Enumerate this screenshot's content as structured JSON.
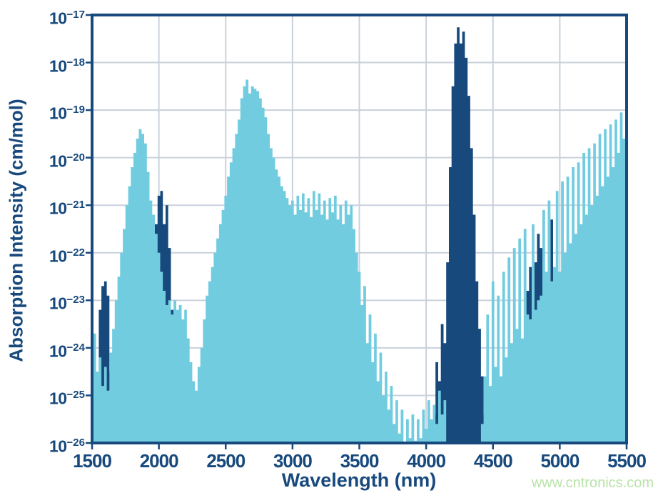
{
  "watermark": "www.cntronics.com",
  "chart_data": {
    "type": "area",
    "title": "",
    "xlabel": "Wavelength (nm)",
    "ylabel": "Absorption Intensity (cm/mol)",
    "x_axis": {
      "min": 1500,
      "max": 5500,
      "tick_step": 500,
      "ticks": [
        1500,
        2000,
        2500,
        3000,
        3500,
        4000,
        4500,
        5000,
        5500
      ]
    },
    "y_axis": {
      "scale": "log10",
      "top_exponent": -17,
      "bottom_exponent": -26,
      "tick_exponents": [
        -17,
        -18,
        -19,
        -20,
        -21,
        -22,
        -23,
        -24,
        -25,
        -26
      ],
      "tick_label_base": "10"
    },
    "grid": true,
    "legend": "none",
    "colors": {
      "light_blue_series": "#72cce0",
      "dark_blue_series": "#17497c",
      "grid": "#c9d1dc",
      "frame": "#17497d",
      "labels": "#17497d",
      "watermark": "#b9e3aa",
      "background": "#ffffff"
    },
    "sampling": {
      "x_start": 1500,
      "x_step": 20,
      "x_end": 5500,
      "points": 201,
      "value_meaning": "log10 of absorption intensity (cm/mol); -26 = at/below axis floor"
    },
    "series": [
      {
        "name": "dark-blue-absorption-bands",
        "color_key": "dark_blue_series",
        "z": 0,
        "log10_values": [
          -26,
          -26,
          -25.2,
          -23.2,
          -22.7,
          -22.6,
          -22.9,
          -24.5,
          -25.4,
          -26,
          -26,
          -26,
          -26,
          -26,
          -26,
          -26,
          -26,
          -26,
          -26,
          -26,
          -26,
          -26,
          -24.8,
          -22.6,
          -21.4,
          -20.8,
          -20.7,
          -21.4,
          -21.0,
          -21.9,
          -23.2,
          -24.4,
          -25.6,
          -26,
          -26,
          -26,
          -26,
          -26,
          -26,
          -26,
          -26,
          -26,
          -26,
          -26,
          -26,
          -26,
          -26,
          -26,
          -26,
          -26,
          -26,
          -26,
          -26,
          -26,
          -26,
          -26,
          -26,
          -26,
          -26,
          -26,
          -26,
          -26,
          -26,
          -26,
          -26,
          -26,
          -26,
          -26,
          -26,
          -26,
          -26,
          -26,
          -26,
          -26,
          -26,
          -26,
          -26,
          -26,
          -26,
          -26,
          -26,
          -26,
          -26,
          -26,
          -26,
          -26,
          -26,
          -26,
          -26,
          -26,
          -26,
          -26,
          -26,
          -26,
          -26,
          -26,
          -26,
          -26,
          -26,
          -26,
          -26,
          -26,
          -26,
          -26,
          -26,
          -26,
          -26,
          -26,
          -26,
          -26,
          -26,
          -26,
          -26,
          -26,
          -26,
          -26,
          -26,
          -26,
          -26,
          -26,
          -26,
          -26,
          -26,
          -26,
          -26,
          -26,
          -26,
          -26,
          -25.4,
          -24.3,
          -24.7,
          -23.5,
          -23.9,
          -22.2,
          -20.2,
          -18.5,
          -17.6,
          -17.26,
          -17.6,
          -17.35,
          -17.9,
          -18.7,
          -19.8,
          -21.2,
          -22.6,
          -23.6,
          -24.6,
          -25.4,
          -26,
          -26,
          -26,
          -26,
          -26,
          -26,
          -26,
          -26,
          -26,
          -26,
          -26,
          -26,
          -26,
          -26,
          -26,
          -22.8,
          -22.3,
          -26,
          -22.2,
          -21.6,
          -21.9,
          -24.6,
          -26,
          -24.9,
          -21.3,
          -25.6,
          -26,
          -26,
          -26,
          -26,
          -26,
          -26,
          -26,
          -26,
          -26,
          -26,
          -26,
          -26,
          -26,
          -26,
          -26,
          -26,
          -26,
          -26,
          -26,
          -26,
          -26,
          -26,
          -26,
          -26,
          -26,
          -26,
          -26
        ]
      },
      {
        "name": "light-blue-absorption-spectrum",
        "color_key": "light_blue_series",
        "z": 1,
        "log10_values": [
          -23.4,
          -23.7,
          -24.5,
          -24.2,
          -24.8,
          -24.4,
          -24.9,
          -24.1,
          -23.6,
          -23.0,
          -22.5,
          -22.0,
          -21.5,
          -21.0,
          -20.6,
          -20.2,
          -19.9,
          -19.6,
          -19.4,
          -19.5,
          -19.7,
          -20.3,
          -20.9,
          -21.2,
          -21.6,
          -22.0,
          -22.4,
          -22.8,
          -23.1,
          -23.0,
          -23.3,
          -23.0,
          -23.2,
          -23.1,
          -23.4,
          -23.2,
          -23.8,
          -24.3,
          -24.7,
          -24.9,
          -24.4,
          -24.0,
          -23.4,
          -22.9,
          -22.6,
          -22.3,
          -22.0,
          -21.7,
          -21.4,
          -21.1,
          -20.8,
          -20.4,
          -20.1,
          -19.8,
          -19.5,
          -19.2,
          -18.75,
          -18.5,
          -18.36,
          -18.65,
          -18.5,
          -18.55,
          -18.6,
          -18.75,
          -18.95,
          -19.15,
          -19.5,
          -19.8,
          -20.0,
          -20.25,
          -20.4,
          -20.6,
          -20.7,
          -20.85,
          -21.0,
          -20.9,
          -21.2,
          -20.8,
          -21.1,
          -20.75,
          -21.15,
          -20.85,
          -21.25,
          -20.7,
          -21.1,
          -20.75,
          -21.2,
          -20.9,
          -21.3,
          -20.85,
          -21.15,
          -20.8,
          -21.3,
          -21.0,
          -21.4,
          -20.9,
          -21.2,
          -21.0,
          -21.5,
          -22.0,
          -22.4,
          -23.1,
          -22.7,
          -23.9,
          -23.3,
          -24.3,
          -23.7,
          -24.7,
          -24.1,
          -25.0,
          -24.5,
          -25.3,
          -24.8,
          -25.6,
          -25.1,
          -25.8,
          -25.3,
          -26.0,
          -25.5,
          -25.9,
          -25.4,
          -25.95,
          -25.5,
          -25.9,
          -25.3,
          -25.7,
          -25.1,
          -25.5,
          -25.2,
          -25.6,
          -24.9,
          -25.4,
          -25.1,
          -26,
          -26,
          -26,
          -26,
          -26,
          -26,
          -26,
          -26,
          -26,
          -26,
          -26,
          -26,
          -26,
          -25.6,
          -24.6,
          -23.3,
          -24.8,
          -22.6,
          -24.4,
          -22.9,
          -24.6,
          -22.4,
          -24.2,
          -22.1,
          -23.9,
          -21.9,
          -23.6,
          -21.7,
          -23.8,
          -21.5,
          -23.3,
          -23.4,
          -21.4,
          -23.2,
          -23.0,
          -22.9,
          -21.1,
          -22.4,
          -20.9,
          -22.6,
          -22.3,
          -20.7,
          -22.4,
          -20.5,
          -22.0,
          -20.4,
          -21.8,
          -20.2,
          -21.6,
          -20.1,
          -21.4,
          -19.9,
          -21.2,
          -19.8,
          -21.0,
          -19.7,
          -20.8,
          -19.5,
          -20.6,
          -19.4,
          -20.4,
          -19.3,
          -20.2,
          -19.2,
          -19.9,
          -19.05,
          -19.6,
          -19.3
        ]
      }
    ]
  }
}
